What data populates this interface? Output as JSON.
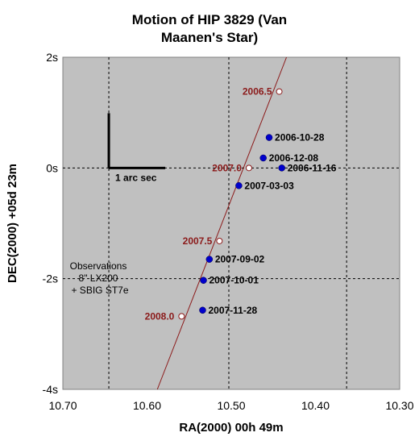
{
  "chart_data": {
    "type": "scatter",
    "title_lines": [
      "Motion of HIP 3829 (Van",
      "Maanen's Star)"
    ],
    "xlabel": "RA(2000) 00h 49m",
    "ylabel": "DEC(2000) +05d 23m",
    "xlim": [
      10.7,
      10.3
    ],
    "ylim": [
      -4,
      2
    ],
    "x_ticks": [
      {
        "value": 10.7,
        "label": "10.70"
      },
      {
        "value": 10.6,
        "label": "10.60"
      },
      {
        "value": 10.5,
        "label": "10.50"
      },
      {
        "value": 10.4,
        "label": "10.40"
      },
      {
        "value": 10.3,
        "label": "10.30"
      }
    ],
    "y_ticks": [
      {
        "value": 2,
        "label": "2s"
      },
      {
        "value": 0,
        "label": "0s"
      },
      {
        "value": -2,
        "label": "-2s"
      },
      {
        "value": -4,
        "label": "-4s"
      }
    ],
    "grid": "dashed",
    "plot_background": "#c0c0c0",
    "track": {
      "from": [
        10.5878,
        -4.0
      ],
      "to": [
        10.4344,
        2.0
      ],
      "color": "#8b1a1a"
    },
    "observations": [
      {
        "label": "2006-10-28",
        "x": 10.455,
        "y": 0.55
      },
      {
        "label": "2006-12-08",
        "x": 10.462,
        "y": 0.18
      },
      {
        "label": "2006-11-16",
        "x": 10.44,
        "y": 0.0
      },
      {
        "label": "2007-03-03",
        "x": 10.491,
        "y": -0.32
      },
      {
        "label": "2007-09-02",
        "x": 10.526,
        "y": -1.65
      },
      {
        "label": "2007-10-01",
        "x": 10.533,
        "y": -2.03
      },
      {
        "label": "2007-11-28",
        "x": 10.534,
        "y": -2.57
      }
    ],
    "epochs": [
      {
        "label": "2006.5",
        "x": 10.443,
        "y": 1.38
      },
      {
        "label": "2007.0",
        "x": 10.479,
        "y": 0.0
      },
      {
        "label": "2007.5",
        "x": 10.514,
        "y": -1.32
      },
      {
        "label": "2008.0",
        "x": 10.559,
        "y": -2.68
      }
    ],
    "scale_bar": {
      "label": "1 arc sec"
    },
    "note_lines": [
      "Observations",
      "8\" LX200",
      "+ SBIG ST7e"
    ],
    "colors": {
      "observation": "#0000cc",
      "epoch_fill": "#ffffff",
      "track": "#8b1a1a",
      "epoch_text": "#8b1a1a"
    }
  }
}
